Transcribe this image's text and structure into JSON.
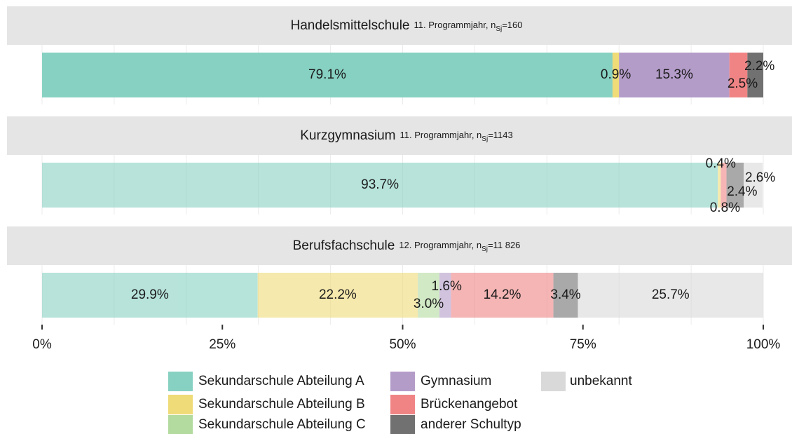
{
  "chart_data": {
    "type": "stacked-bar-facets",
    "categories": [
      {
        "name": "Handelsmittelschule",
        "note": "11. Programmjahr, n",
        "sub": "Sj",
        "n": "=160"
      },
      {
        "name": "Kurzgymnasium",
        "note": "11. Programmjahr, n",
        "sub": "Sj",
        "n": "=1143"
      },
      {
        "name": "Berufsfachschule",
        "note": "12. Programmjahr, n",
        "sub": "Sj",
        "n": "=11 826"
      }
    ],
    "series": [
      {
        "name": "Sekundarschule Abteilung A",
        "color": "#87d1c2",
        "values": [
          79.1,
          93.7,
          29.9
        ],
        "value_labels": [
          "79.1%",
          "93.7%",
          "29.9%"
        ]
      },
      {
        "name": "Sekundarschule Abteilung B",
        "color": "#efdb77",
        "values": [
          0.9,
          0.4,
          22.2
        ],
        "value_labels": [
          "0.9%",
          "0.4%",
          "22.2%"
        ]
      },
      {
        "name": "Sekundarschule Abteilung C",
        "color": "#b3dba0",
        "values": [
          null,
          null,
          3.0
        ],
        "value_labels": [
          null,
          null,
          "3.0%"
        ]
      },
      {
        "name": "Gymnasium",
        "color": "#b49cc9",
        "values": [
          15.3,
          null,
          1.6
        ],
        "value_labels": [
          "15.3%",
          null,
          "1.6%"
        ]
      },
      {
        "name": "Brückenangebot",
        "color": "#f08485",
        "values": [
          2.5,
          0.8,
          14.2
        ],
        "value_labels": [
          "2.5%",
          "0.8%",
          "14.2%"
        ]
      },
      {
        "name": "anderer Schultyp",
        "color": "#717171",
        "values": [
          2.2,
          2.4,
          3.4
        ],
        "value_labels": [
          "2.2%",
          "2.4%",
          "3.4%"
        ]
      },
      {
        "name": "unbekannt",
        "color": "#d9d9d9",
        "values": [
          null,
          2.6,
          25.7
        ],
        "value_labels": [
          null,
          "2.6%",
          "25.7%"
        ]
      }
    ],
    "panel_alpha": [
      1,
      0.6,
      0.6
    ],
    "xlim": [
      0,
      100
    ],
    "xticks": [
      {
        "value": 0,
        "label": "0%"
      },
      {
        "value": 25,
        "label": "25%"
      },
      {
        "value": 50,
        "label": "50%"
      },
      {
        "value": 75,
        "label": "75%"
      },
      {
        "value": 100,
        "label": "100%"
      }
    ],
    "xgrid": [
      0,
      10,
      20,
      30,
      40,
      50,
      60,
      70,
      80,
      90,
      100
    ],
    "legend": "bottom"
  }
}
